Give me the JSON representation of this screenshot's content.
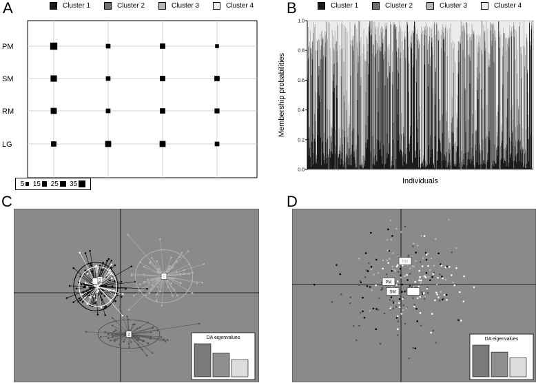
{
  "panels": {
    "A": {
      "label": "A"
    },
    "B": {
      "label": "B"
    },
    "C": {
      "label": "C"
    },
    "D": {
      "label": "D"
    }
  },
  "legend": {
    "clusters": [
      {
        "name": "Cluster 1",
        "color": "#1a1a1a"
      },
      {
        "name": "Cluster 2",
        "color": "#6e6e6e"
      },
      {
        "name": "Cluster 3",
        "color": "#b4b4b4"
      },
      {
        "name": "Cluster 4",
        "color": "#ececec"
      }
    ]
  },
  "chart_data": [
    {
      "id": "A",
      "type": "scatter",
      "subtype": "bubble-grid",
      "title": "",
      "rows": [
        "PM",
        "SM",
        "RM",
        "LG"
      ],
      "columns": [
        "Cluster 1",
        "Cluster 2",
        "Cluster 3",
        "Cluster 4"
      ],
      "values": [
        [
          38,
          12,
          18,
          7
        ],
        [
          28,
          12,
          18,
          18
        ],
        [
          25,
          12,
          18,
          15
        ],
        [
          18,
          25,
          25,
          12
        ]
      ],
      "size_legend": [
        5,
        15,
        25,
        35
      ],
      "grid": true
    },
    {
      "id": "B",
      "type": "bar",
      "subtype": "stacked-membership",
      "xlabel": "Individuals",
      "ylabel": "Membership probabilities",
      "ylim": [
        0,
        1
      ],
      "yticks": [
        "0.0",
        "0.2",
        "0.4",
        "0.6",
        "0.8",
        "1.0"
      ],
      "series": [
        "Cluster 1",
        "Cluster 2",
        "Cluster 3",
        "Cluster 4"
      ]
    },
    {
      "id": "C",
      "type": "scatter",
      "subtype": "dapc-scatter",
      "groups": [
        {
          "label": "1",
          "color": "#000000",
          "cx": -1.2,
          "cy": 0.3
        },
        {
          "label": "2",
          "color": "#555555",
          "cx": 0.4,
          "cy": -2.0
        },
        {
          "label": "3",
          "color": "#b4b4b4",
          "cx": 2.1,
          "cy": 0.8
        },
        {
          "label": "4",
          "color": "#ffffff",
          "cx": -1.1,
          "cy": 0.3
        }
      ],
      "inset_title": "DA eigenvalues",
      "eigenvalues": [
        1.0,
        0.72,
        0.52
      ]
    },
    {
      "id": "D",
      "type": "scatter",
      "subtype": "dapc-scatter",
      "groups": [
        {
          "label": "PM",
          "color": "#000000",
          "cx": -0.45,
          "cy": 0.1
        },
        {
          "label": "SM",
          "color": "#555555",
          "cx": -0.3,
          "cy": -0.5
        },
        {
          "label": "RM",
          "color": "#b4b4b4",
          "cx": -0.1,
          "cy": 0.55
        },
        {
          "label": "LG",
          "color": "#ffffff",
          "cx": 0.75,
          "cy": -0.1
        }
      ],
      "inset_title": "DA eigenvalues",
      "eigenvalues": [
        1.0,
        0.78,
        0.6
      ]
    }
  ]
}
